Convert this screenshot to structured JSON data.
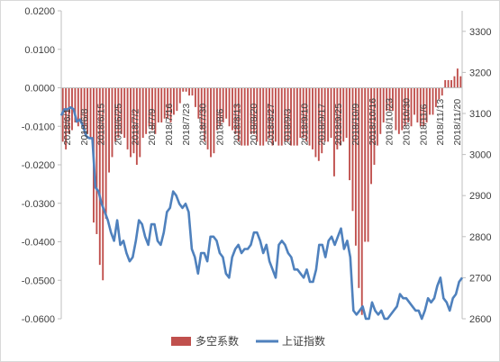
{
  "chart_data": {
    "type": "bar+line",
    "left_axis": {
      "min": -0.06,
      "max": 0.02,
      "ticks": [
        "0.0200",
        "0.0100",
        "0.0000",
        "-0.0100",
        "-0.0200",
        "-0.0300",
        "-0.0400",
        "-0.0500",
        "-0.0600"
      ]
    },
    "right_axis": {
      "min": 2600,
      "max": 3350,
      "ticks": [
        "3300",
        "3200",
        "3100",
        "3000",
        "2900",
        "2800",
        "2700",
        "2600"
      ]
    },
    "x_tick_labels": [
      "2018/6/1",
      "2018/6/8",
      "2018/6/15",
      "2018/6/25",
      "2018/7/2",
      "2018/7/9",
      "2018/7/16",
      "2018/7/23",
      "2018/7/30",
      "2018/8/6",
      "2018/8/13",
      "2018/8/20",
      "2018/8/27",
      "2018/9/3",
      "2018/9/10",
      "2018/9/17",
      "2018/9/25",
      "2018/10/9",
      "2018/10/16",
      "2018/10/23",
      "2018/10/30",
      "2018/11/6",
      "2018/11/13",
      "2018/11/20"
    ],
    "series": [
      {
        "name": "多空系数",
        "kind": "bar",
        "color": "#c0504d",
        "values": [
          -0.014,
          -0.016,
          -0.012,
          -0.011,
          -0.009,
          -0.01,
          -0.009,
          -0.012,
          -0.012,
          -0.013,
          -0.035,
          -0.038,
          -0.046,
          -0.05,
          -0.034,
          -0.022,
          -0.018,
          -0.014,
          -0.013,
          -0.012,
          -0.013,
          -0.016,
          -0.018,
          -0.017,
          -0.02,
          -0.018,
          -0.013,
          -0.012,
          -0.01,
          -0.011,
          -0.012,
          -0.009,
          -0.009,
          -0.008,
          -0.008,
          -0.009,
          -0.007,
          -0.006,
          -0.004,
          -0.001,
          -0.001,
          -0.002,
          -0.002,
          -0.005,
          -0.008,
          -0.011,
          -0.014,
          -0.016,
          -0.018,
          -0.017,
          -0.011,
          -0.01,
          -0.009,
          -0.008,
          -0.01,
          -0.011,
          -0.012,
          -0.014,
          -0.015,
          -0.015,
          -0.015,
          -0.012,
          -0.012,
          -0.014,
          -0.015,
          -0.015,
          -0.014,
          -0.013,
          -0.015,
          -0.014,
          -0.015,
          -0.015,
          -0.014,
          -0.014,
          -0.015,
          -0.015,
          -0.015,
          -0.013,
          -0.013,
          -0.014,
          -0.015,
          -0.016,
          -0.018,
          -0.019,
          -0.017,
          -0.014,
          -0.014,
          -0.013,
          -0.023,
          -0.016,
          -0.015,
          -0.014,
          -0.013,
          -0.024,
          -0.032,
          -0.041,
          -0.052,
          -0.059,
          -0.04,
          -0.04,
          -0.025,
          -0.02,
          -0.015,
          -0.012,
          -0.009,
          -0.006,
          -0.006,
          -0.006,
          -0.011,
          -0.012,
          -0.011,
          -0.01,
          -0.009,
          -0.01,
          -0.007,
          -0.009,
          -0.01,
          -0.01,
          -0.009,
          -0.007,
          -0.007,
          -0.005,
          -0.003,
          -0.002,
          0.002,
          0.002,
          0.002,
          0.003,
          0.005,
          0.003
        ]
      },
      {
        "name": "上证指数",
        "kind": "line",
        "color": "#4f81bd",
        "values": [
          3095,
          3110,
          3110,
          3115,
          3110,
          3080,
          3085,
          3070,
          3045,
          3040,
          3040,
          2920,
          2910,
          2880,
          2860,
          2840,
          2810,
          2790,
          2840,
          2780,
          2790,
          2760,
          2740,
          2750,
          2790,
          2840,
          2830,
          2800,
          2780,
          2830,
          2830,
          2790,
          2780,
          2810,
          2860,
          2870,
          2910,
          2900,
          2880,
          2870,
          2880,
          2860,
          2770,
          2750,
          2710,
          2760,
          2760,
          2740,
          2800,
          2800,
          2790,
          2760,
          2750,
          2710,
          2700,
          2750,
          2770,
          2780,
          2760,
          2770,
          2770,
          2780,
          2810,
          2810,
          2790,
          2760,
          2780,
          2740,
          2720,
          2700,
          2780,
          2790,
          2780,
          2760,
          2750,
          2720,
          2720,
          2710,
          2700,
          2720,
          2690,
          2690,
          2720,
          2780,
          2780,
          2750,
          2790,
          2800,
          2780,
          2800,
          2820,
          2770,
          2790,
          2750,
          2620,
          2610,
          2620,
          2630,
          2600,
          2600,
          2640,
          2620,
          2610,
          2620,
          2600,
          2600,
          2610,
          2620,
          2630,
          2660,
          2650,
          2650,
          2640,
          2630,
          2620,
          2620,
          2600,
          2620,
          2650,
          2640,
          2650,
          2680,
          2700,
          2650,
          2640,
          2620,
          2650,
          2660,
          2690,
          2700
        ]
      }
    ],
    "legend_placement": "bottom"
  }
}
